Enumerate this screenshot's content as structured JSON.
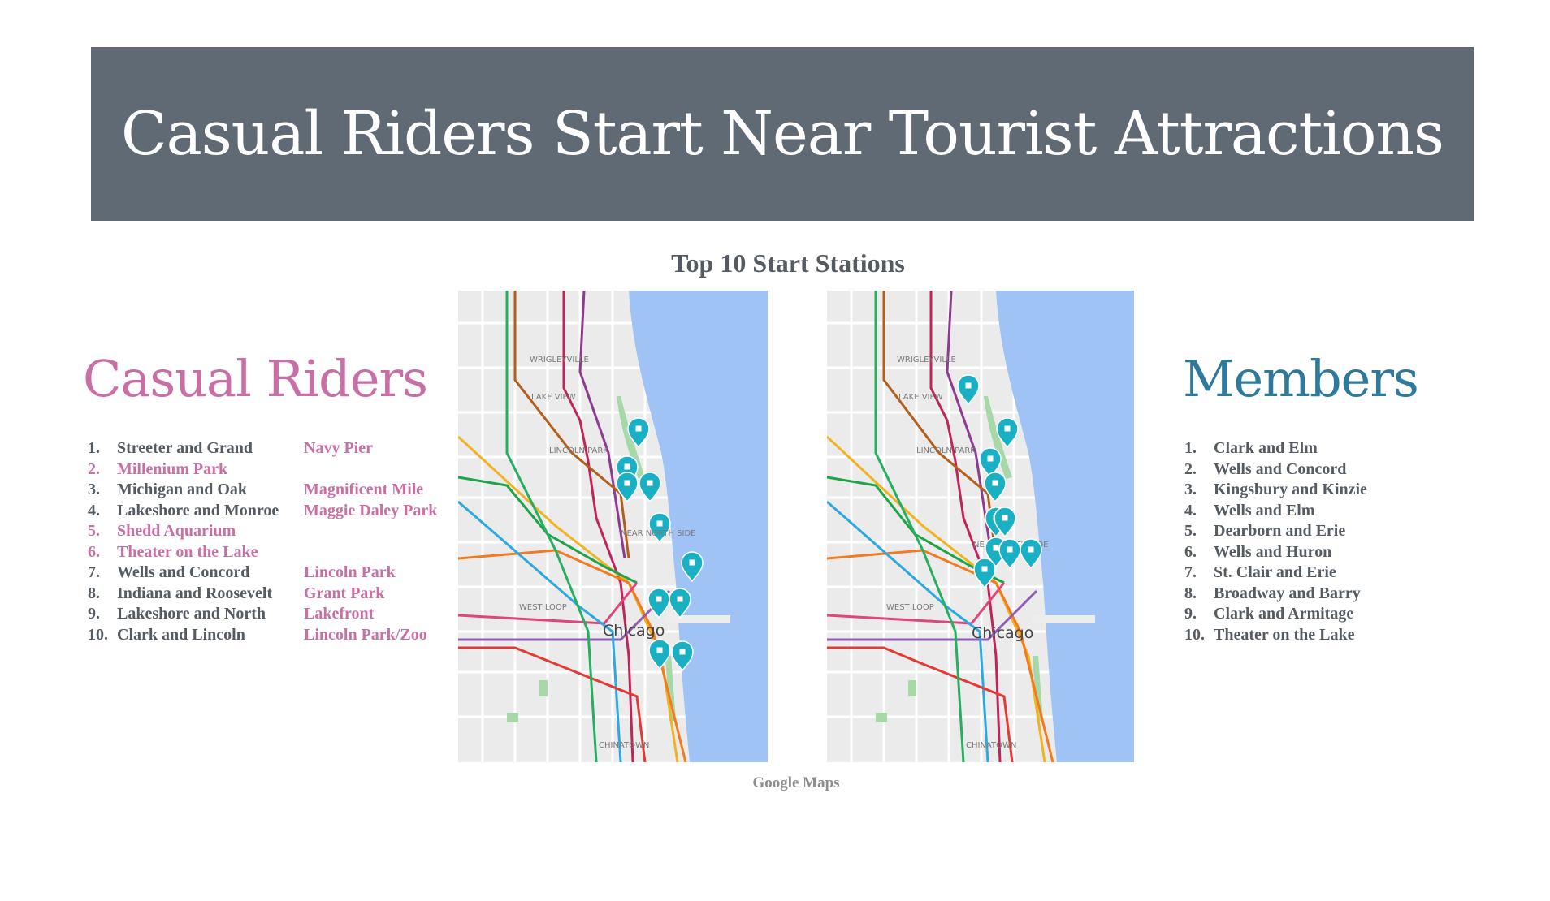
{
  "title": "Casual Riders Start Near Tourist Attractions",
  "subtitle": "Top 10 Start Stations",
  "source": "Google Maps",
  "colors": {
    "banner": "#5f6a75",
    "casual": "#c86fa3",
    "members": "#2f7a9b",
    "text": "#555b62",
    "pin": "#1ab0c4",
    "water": "#9fc3f5"
  },
  "casual": {
    "heading": "Casual Riders",
    "items": [
      {
        "num": "1.",
        "station": "Streeter and Grand",
        "attraction": "Navy Pier"
      },
      {
        "num": "2.",
        "station": "Millenium Park",
        "attraction": ""
      },
      {
        "num": "3.",
        "station": "Michigan and Oak",
        "attraction": "Magnificent Mile"
      },
      {
        "num": "4.",
        "station": "Lakeshore and Monroe",
        "attraction": "Maggie Daley Park"
      },
      {
        "num": "5.",
        "station": "Shedd Aquarium",
        "attraction": ""
      },
      {
        "num": "6.",
        "station": "Theater on the Lake",
        "attraction": ""
      },
      {
        "num": "7.",
        "station": "Wells and Concord",
        "attraction": "Lincoln Park"
      },
      {
        "num": "8.",
        "station": "Indiana and Roosevelt",
        "attraction": "Grant Park"
      },
      {
        "num": "9.",
        "station": "Lakeshore and North",
        "attraction": "Lakefront"
      },
      {
        "num": "10.",
        "station": "Clark and Lincoln",
        "attraction": "Lincoln Park/Zoo"
      }
    ]
  },
  "members": {
    "heading": "Members",
    "items": [
      {
        "num": "1.",
        "station": "Clark and Elm"
      },
      {
        "num": "2.",
        "station": "Wells and Concord"
      },
      {
        "num": "3.",
        "station": "Kingsbury and Kinzie"
      },
      {
        "num": "4.",
        "station": "Wells and Elm"
      },
      {
        "num": "5.",
        "station": "Dearborn and Erie"
      },
      {
        "num": "6.",
        "station": "Wells and Huron"
      },
      {
        "num": "7.",
        "station": "St. Clair and Erie"
      },
      {
        "num": "8.",
        "station": "Broadway and Barry"
      },
      {
        "num": "9.",
        "station": "Clark and Armitage"
      },
      {
        "num": "10.",
        "station": "Theater on the Lake"
      }
    ]
  },
  "map_labels": {
    "wrigleyville": "WRIGLEYVILLE",
    "lakeview": "LAKE VIEW",
    "lincoln_park": "LINCOLN PARK",
    "near_north": "NEAR NORTH SIDE",
    "west_loop": "WEST LOOP",
    "city": "Chicago",
    "chinatown": "CHINATOWN"
  }
}
